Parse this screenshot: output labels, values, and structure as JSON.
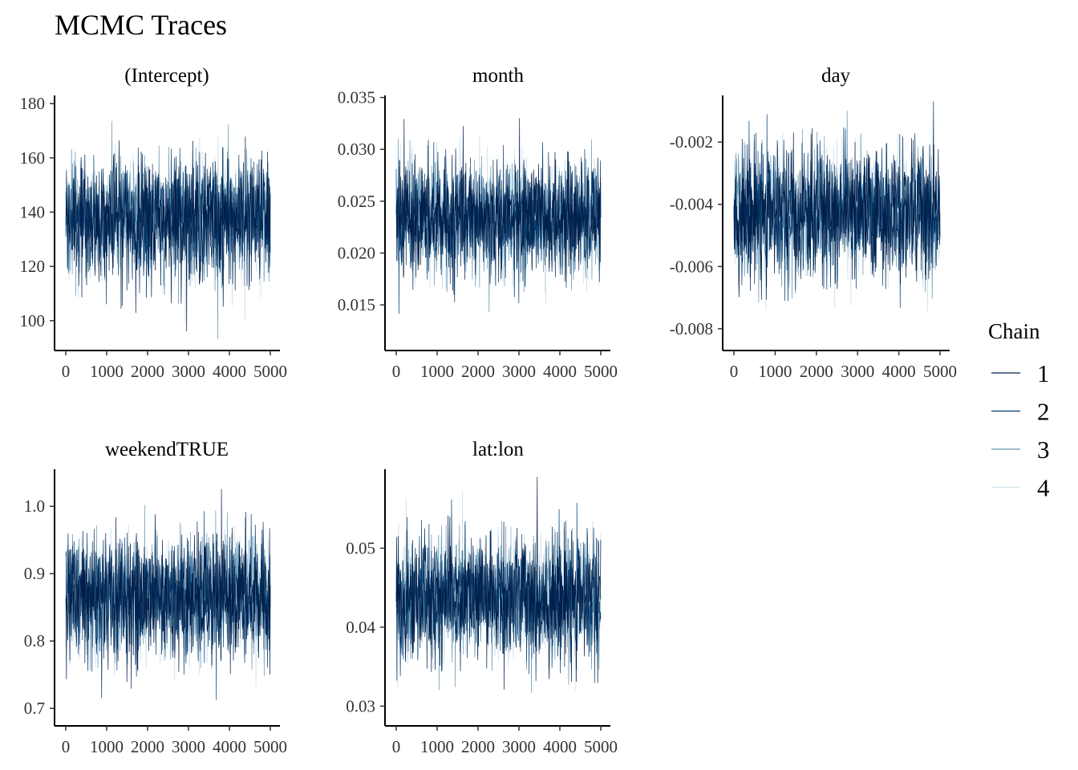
{
  "title": "MCMC Traces",
  "legend": {
    "title": "Chain",
    "entries": [
      {
        "label": "1",
        "color": "#011f4b"
      },
      {
        "label": "2",
        "color": "#03396c"
      },
      {
        "label": "3",
        "color": "#6497b1"
      },
      {
        "label": "4",
        "color": "#d1e1ec"
      }
    ]
  },
  "chart_data": [
    {
      "type": "line",
      "title": "(Intercept)",
      "x_range": [
        0,
        5000
      ],
      "x_ticks": [
        0,
        1000,
        2000,
        3000,
        4000,
        5000
      ],
      "x_tick_labels": [
        "0",
        "1000",
        "2000",
        "3000",
        "4000",
        "5000"
      ],
      "ylim": [
        89,
        183
      ],
      "y_ticks": [
        100,
        120,
        140,
        160,
        180
      ],
      "y_tick_labels": [
        "100",
        "120",
        "140",
        "160",
        "180"
      ],
      "center": 137.5,
      "spread": 11,
      "min": 91,
      "max": 178,
      "series": [
        {
          "name": "1"
        },
        {
          "name": "2"
        },
        {
          "name": "3"
        },
        {
          "name": "4"
        }
      ]
    },
    {
      "type": "line",
      "title": "month",
      "x_range": [
        0,
        5000
      ],
      "x_ticks": [
        0,
        1000,
        2000,
        3000,
        4000,
        5000
      ],
      "x_tick_labels": [
        "0",
        "1000",
        "2000",
        "3000",
        "4000",
        "5000"
      ],
      "ylim": [
        0.0106,
        0.0352
      ],
      "y_ticks": [
        0.015,
        0.02,
        0.025,
        0.03,
        0.035
      ],
      "y_tick_labels": [
        "0.015",
        "0.020",
        "0.025",
        "0.030",
        "0.035"
      ],
      "center": 0.0233,
      "spread": 0.0027,
      "min": 0.0118,
      "max": 0.0341,
      "series": [
        {
          "name": "1"
        },
        {
          "name": "2"
        },
        {
          "name": "3"
        },
        {
          "name": "4"
        }
      ]
    },
    {
      "type": "line",
      "title": "day",
      "x_range": [
        0,
        5000
      ],
      "x_ticks": [
        0,
        1000,
        2000,
        3000,
        4000,
        5000
      ],
      "x_tick_labels": [
        "0",
        "1000",
        "2000",
        "3000",
        "4000",
        "5000"
      ],
      "ylim": [
        -0.0087,
        -0.0005
      ],
      "y_ticks": [
        -0.008,
        -0.006,
        -0.004,
        -0.002
      ],
      "y_tick_labels": [
        "-0.008",
        "-0.006",
        "-0.004",
        "-0.002"
      ],
      "center": -0.0043,
      "spread": 0.001,
      "min": -0.0083,
      "max": -0.0007,
      "series": [
        {
          "name": "1"
        },
        {
          "name": "2"
        },
        {
          "name": "3"
        },
        {
          "name": "4"
        }
      ]
    },
    {
      "type": "line",
      "title": "weekendTRUE",
      "x_range": [
        0,
        5000
      ],
      "x_ticks": [
        0,
        1000,
        2000,
        3000,
        4000,
        5000
      ],
      "x_tick_labels": [
        "0",
        "1000",
        "2000",
        "3000",
        "4000",
        "5000"
      ],
      "ylim": [
        0.674,
        1.055
      ],
      "y_ticks": [
        0.7,
        0.8,
        0.9,
        1.0
      ],
      "y_tick_labels": [
        "0.7",
        "0.8",
        "0.9",
        "1.0"
      ],
      "center": 0.865,
      "spread": 0.045,
      "min": 0.686,
      "max": 1.037,
      "series": [
        {
          "name": "1"
        },
        {
          "name": "2"
        },
        {
          "name": "3"
        },
        {
          "name": "4"
        }
      ]
    },
    {
      "type": "line",
      "title": "lat:lon",
      "x_range": [
        0,
        5000
      ],
      "x_ticks": [
        0,
        1000,
        2000,
        3000,
        4000,
        5000
      ],
      "x_tick_labels": [
        "0",
        "1000",
        "2000",
        "3000",
        "4000",
        "5000"
      ],
      "ylim": [
        0.0275,
        0.06
      ],
      "y_ticks": [
        0.03,
        0.04,
        0.05
      ],
      "y_tick_labels": [
        "0.03",
        "0.04",
        "0.05"
      ],
      "center": 0.0436,
      "spread": 0.0038,
      "min": 0.0288,
      "max": 0.059,
      "series": [
        {
          "name": "1"
        },
        {
          "name": "2"
        },
        {
          "name": "3"
        },
        {
          "name": "4"
        }
      ]
    }
  ]
}
